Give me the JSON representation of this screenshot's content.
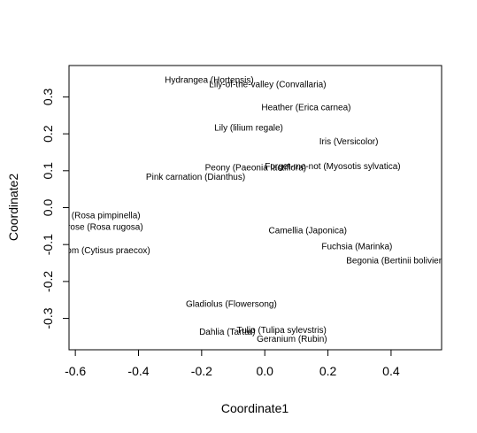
{
  "chart_data": {
    "type": "scatter",
    "title": "",
    "xlabel": "Coordinate1",
    "ylabel": "Coordinate2",
    "xlim": [
      -0.62,
      0.56
    ],
    "ylim": [
      -0.385,
      0.385
    ],
    "xticks": [
      -0.6,
      -0.4,
      -0.2,
      0.0,
      0.2,
      0.4
    ],
    "xtick_labels": [
      "-0.6",
      "-0.4",
      "-0.2",
      "0.0",
      "0.2",
      "0.4"
    ],
    "yticks": [
      -0.3,
      -0.2,
      -0.1,
      0.0,
      0.1,
      0.2,
      0.3
    ],
    "ytick_labels": [
      "-0.3",
      "-0.2",
      "-0.1",
      "0.0",
      "0.1",
      "0.2",
      "0.3"
    ],
    "grid": false,
    "points": [
      {
        "label": "Hydrangea (Hortensis)",
        "x": -0.176,
        "y": 0.344
      },
      {
        "label": "Lily-of-the-valley (Convallaria)",
        "x": 0.009,
        "y": 0.332
      },
      {
        "label": "Heather (Erica carnea)",
        "x": 0.131,
        "y": 0.27
      },
      {
        "label": "Lily (lilium regale)",
        "x": -0.051,
        "y": 0.215
      },
      {
        "label": "Iris (Versicolor)",
        "x": 0.266,
        "y": 0.178
      },
      {
        "label": "Peony (Paeonia lactiflora)",
        "x": -0.029,
        "y": 0.107
      },
      {
        "label": "Forget-me-not (Myosotis sylvatica)",
        "x": 0.215,
        "y": 0.11
      },
      {
        "label": "Pink carnation (Dianthus)",
        "x": -0.219,
        "y": 0.081
      },
      {
        "label": "Scotch rose (Rosa pimpinella)",
        "x": -0.581,
        "y": -0.023
      },
      {
        "label": "Red rose (Rosa rugosa)",
        "x": -0.535,
        "y": -0.054
      },
      {
        "label": "Camellia (Japonica)",
        "x": 0.136,
        "y": -0.063
      },
      {
        "label": "Broom (Cytisus praecox)",
        "x": -0.517,
        "y": -0.118
      },
      {
        "label": "Fuchsia (Marinka)",
        "x": 0.292,
        "y": -0.107
      },
      {
        "label": "Begonia (Bertinii boliviensis)",
        "x": 0.434,
        "y": -0.145
      },
      {
        "label": "Gladiolus (Flowersong)",
        "x": -0.106,
        "y": -0.263
      },
      {
        "label": "Tulip (Tulipa sylevstris)",
        "x": 0.053,
        "y": -0.333
      },
      {
        "label": "Dahlia (Tartar)",
        "x": -0.119,
        "y": -0.338
      },
      {
        "label": "Geranium (Rubin)",
        "x": 0.086,
        "y": -0.358
      }
    ]
  }
}
